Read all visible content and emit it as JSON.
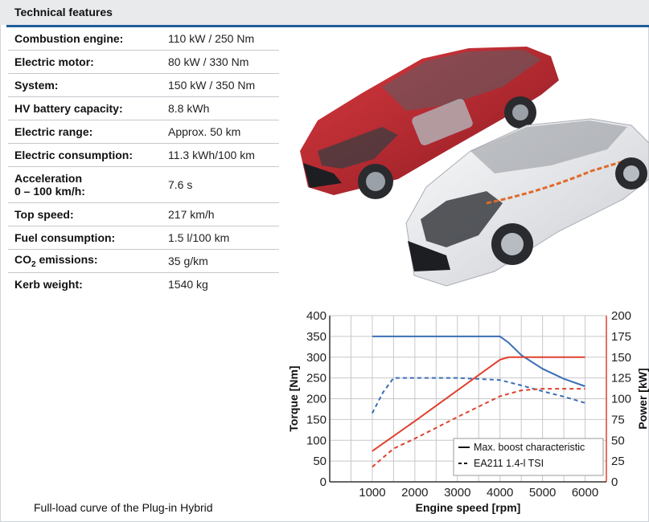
{
  "header": {
    "title": "Technical features"
  },
  "specs": [
    {
      "label": "Combustion engine:",
      "value": "110 kW / 250 Nm"
    },
    {
      "label": "Electric motor:",
      "value": "80 kW / 330 Nm"
    },
    {
      "label": "System:",
      "value": "150 kW / 350 Nm"
    },
    {
      "label": "HV battery capacity:",
      "value": "8.8 kWh"
    },
    {
      "label": "Electric range:",
      "value": "Approx. 50 km"
    },
    {
      "label": "Electric consumption:",
      "value": "11.3 kWh/100 km"
    },
    {
      "label": "Acceleration",
      "label2": "0 – 100 km/h:",
      "value": "7.6 s"
    },
    {
      "label": "Top speed:",
      "value": "217 km/h"
    },
    {
      "label": "Fuel consumption:",
      "value": "1.5 l/100 km"
    },
    {
      "label": "CO",
      "label_sub": "2",
      "label_rest": " emissions:",
      "value": "35 g/km"
    },
    {
      "label": "Kerb weight:",
      "value": "1540 kg"
    }
  ],
  "caption": "Full-load curve of the Plug-in Hybrid",
  "colors": {
    "blue": "#3b6fb6",
    "red": "#e0402e",
    "header_rule": "#1f5e9b"
  },
  "chart_data": {
    "type": "line",
    "xlabel": "Engine speed [rpm]",
    "ylabel": "Torque [Nm]",
    "y2label": "Power [kW]",
    "xlim": [
      0,
      6500
    ],
    "ylim": [
      0,
      400
    ],
    "y2lim": [
      0,
      200
    ],
    "xticks": [
      "1000",
      "2000",
      "3000",
      "4000",
      "5000",
      "6000"
    ],
    "xtick_values": [
      1000,
      2000,
      3000,
      4000,
      5000,
      6000
    ],
    "yticks": [
      "0",
      "50",
      "100",
      "150",
      "200",
      "250",
      "300",
      "350",
      "400"
    ],
    "y2ticks": [
      "0",
      "25",
      "50",
      "75",
      "100",
      "125",
      "150",
      "175",
      "200"
    ],
    "grid": true,
    "legend": {
      "position": "bottom-right",
      "entries": [
        {
          "label": "Max. boost characteristic",
          "style": "solid"
        },
        {
          "label": "EA211 1.4-l TSI",
          "style": "dashed"
        }
      ]
    },
    "series": [
      {
        "quantity": "torque",
        "style": "solid",
        "color": "#3b6fb6",
        "axis": "left",
        "x": [
          1000,
          3000,
          4000,
          4200,
          4500,
          5000,
          5500,
          6000
        ],
        "y": [
          350,
          350,
          350,
          335,
          305,
          272,
          248,
          230
        ]
      },
      {
        "quantity": "torque",
        "style": "dashed",
        "color": "#3b6fb6",
        "axis": "left",
        "x": [
          1000,
          1250,
          1500,
          2000,
          3000,
          4000,
          4500,
          5000,
          5500,
          6000
        ],
        "y": [
          165,
          215,
          250,
          250,
          250,
          245,
          232,
          218,
          205,
          190
        ]
      },
      {
        "quantity": "power",
        "style": "solid",
        "color": "#e0402e",
        "axis": "right",
        "x": [
          1000,
          2000,
          3000,
          4000,
          4200,
          5000,
          6000
        ],
        "y": [
          37,
          73,
          110,
          147,
          150,
          150,
          150
        ]
      },
      {
        "quantity": "power",
        "style": "dashed",
        "color": "#e0402e",
        "axis": "right",
        "x": [
          1000,
          1500,
          2000,
          3000,
          4000,
          4500,
          5000,
          6000
        ],
        "y": [
          18,
          40,
          52,
          78,
          103,
          110,
          112,
          112
        ]
      }
    ]
  }
}
